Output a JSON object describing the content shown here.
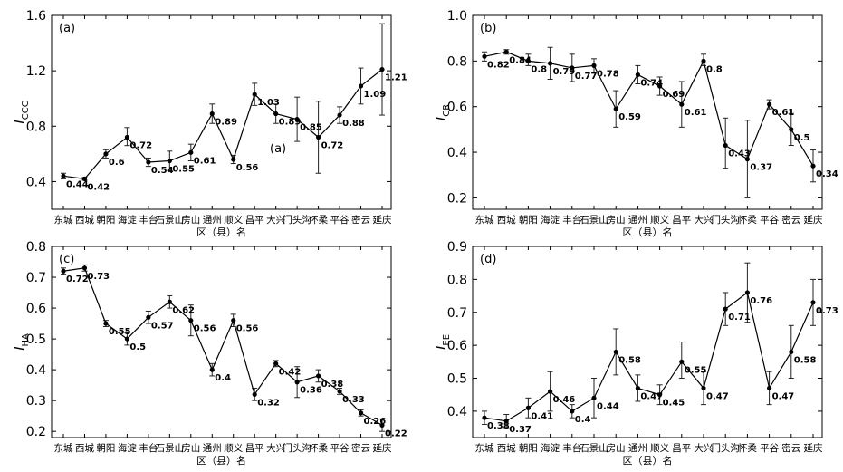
{
  "chart_data": [
    {
      "type": "line",
      "panel_label": "(a)",
      "annotation": "(a)",
      "ylabel": "I",
      "ylabel_sub": "CCC",
      "xlabel": "区（县）名",
      "ylim": [
        0.2,
        1.6
      ],
      "yticks": [
        "0.4",
        "0.8",
        "1.2",
        "1.6"
      ],
      "yticks_values": [
        0.4,
        0.8,
        1.2,
        1.6
      ],
      "grid": false,
      "categories": [
        "东城",
        "西城",
        "朝阳",
        "海淀",
        "丰台",
        "石景山",
        "房山",
        "通州",
        "顺义",
        "昌平",
        "大兴",
        "门头沟",
        "怀柔",
        "平谷",
        "密云",
        "延庆"
      ],
      "x_tick_labels": [
        "东城",
        "西城",
        "朝阳",
        "海淀",
        "丰台",
        "石景山",
        "房山",
        "通州",
        "顺义",
        "昌平",
        "大兴",
        "门头沟",
        "怀柔",
        "平谷",
        "密云",
        "延庆"
      ],
      "values": [
        0.44,
        0.42,
        0.6,
        0.72,
        0.54,
        0.55,
        0.61,
        0.89,
        0.56,
        1.03,
        0.89,
        0.85,
        0.72,
        0.88,
        1.09,
        1.21
      ],
      "value_labels": [
        "0.44",
        "0.42",
        "0.6",
        "0.72",
        "0.54",
        "0.55",
        "0.61",
        "0.89",
        "0.56",
        "1.03",
        "0.89",
        "0.85",
        "0.72",
        "0.88",
        "1.09",
        "1.21"
      ],
      "err_low": [
        0.42,
        0.41,
        0.57,
        0.66,
        0.51,
        0.48,
        0.55,
        0.82,
        0.53,
        0.95,
        0.82,
        0.69,
        0.46,
        0.82,
        0.96,
        0.88
      ],
      "err_high": [
        0.46,
        0.43,
        0.63,
        0.79,
        0.57,
        0.62,
        0.67,
        0.96,
        0.59,
        1.11,
        0.96,
        1.01,
        0.98,
        0.94,
        1.22,
        1.54
      ]
    },
    {
      "type": "line",
      "panel_label": "(b)",
      "ylabel": "I",
      "ylabel_sub": "CR",
      "xlabel": "区（县）名",
      "ylim": [
        0.15,
        1.0
      ],
      "yticks": [
        "0.2",
        "0.4",
        "0.6",
        "0.8",
        "1.0"
      ],
      "yticks_values": [
        0.2,
        0.4,
        0.6,
        0.8,
        1.0
      ],
      "grid": false,
      "categories": [
        "东城",
        "西城",
        "朝阳",
        "海淀",
        "丰台",
        "石景山",
        "房山",
        "通州",
        "顺义",
        "昌平",
        "大兴",
        "门头沟",
        "怀柔",
        "平谷",
        "密云",
        "延庆"
      ],
      "x_tick_labels": [
        "东城",
        "西城",
        "朝阳",
        "海淀",
        "丰台",
        "石景山",
        "房山",
        "通州",
        "顺义",
        "昌平",
        "大兴",
        "门头沟",
        "怀柔",
        "平谷",
        "密云",
        "延庆"
      ],
      "values": [
        0.82,
        0.84,
        0.8,
        0.79,
        0.77,
        0.78,
        0.59,
        0.74,
        0.69,
        0.61,
        0.8,
        0.43,
        0.37,
        0.61,
        0.5,
        0.34
      ],
      "value_labels": [
        "0.82",
        "0.84",
        "0.8",
        "0.79",
        "0.77",
        "0.78",
        "0.59",
        "0.74",
        "0.69",
        "0.61",
        "0.8",
        "0.43",
        "0.37",
        "0.61",
        "0.5",
        "0.34"
      ],
      "err_low": [
        0.8,
        0.83,
        0.78,
        0.72,
        0.71,
        0.75,
        0.51,
        0.7,
        0.65,
        0.51,
        0.78,
        0.33,
        0.2,
        0.59,
        0.43,
        0.27
      ],
      "err_high": [
        0.84,
        0.85,
        0.83,
        0.86,
        0.83,
        0.81,
        0.67,
        0.78,
        0.73,
        0.71,
        0.83,
        0.55,
        0.54,
        0.63,
        0.57,
        0.41
      ]
    },
    {
      "type": "line",
      "panel_label": "(c)",
      "ylabel": "I",
      "ylabel_sub": "HA",
      "xlabel": "区（县）名",
      "ylim": [
        0.18,
        0.8
      ],
      "yticks": [
        "0.2",
        "0.3",
        "0.4",
        "0.5",
        "0.6",
        "0.7",
        "0.8"
      ],
      "yticks_values": [
        0.2,
        0.3,
        0.4,
        0.5,
        0.6,
        0.7,
        0.8
      ],
      "grid": false,
      "categories": [
        "东城",
        "西城",
        "朝阳",
        "海淀",
        "丰台",
        "石景山",
        "房山",
        "通州",
        "顺义",
        "昌平",
        "大兴",
        "门头沟",
        "怀柔",
        "平谷",
        "密云",
        "延庆"
      ],
      "x_tick_labels": [
        "东城",
        "西城",
        "朝阳",
        "海淀",
        "丰台",
        "石景山",
        "房山",
        "通州",
        "顺义",
        "昌平",
        "大兴",
        "门头沟",
        "怀柔",
        "平谷",
        "密云",
        "延庆"
      ],
      "values": [
        0.72,
        0.73,
        0.55,
        0.5,
        0.57,
        0.62,
        0.56,
        0.4,
        0.56,
        0.32,
        0.42,
        0.36,
        0.38,
        0.33,
        0.26,
        0.22
      ],
      "value_labels": [
        "0.72",
        "0.73",
        "0.55",
        "0.5",
        "0.57",
        "0.62",
        "0.56",
        "0.4",
        "0.56",
        "0.32",
        "0.42",
        "0.36",
        "0.38",
        "0.33",
        "0.26",
        "0.22"
      ],
      "err_low": [
        0.71,
        0.72,
        0.54,
        0.48,
        0.55,
        0.6,
        0.51,
        0.38,
        0.54,
        0.3,
        0.41,
        0.31,
        0.36,
        0.32,
        0.25,
        0.2
      ],
      "err_high": [
        0.73,
        0.74,
        0.56,
        0.52,
        0.59,
        0.64,
        0.61,
        0.42,
        0.58,
        0.34,
        0.43,
        0.41,
        0.4,
        0.34,
        0.27,
        0.24
      ]
    },
    {
      "type": "line",
      "panel_label": "(d)",
      "ylabel": "I",
      "ylabel_sub": "EE",
      "xlabel": "区（县）名",
      "ylim": [
        0.32,
        0.9
      ],
      "yticks": [
        "0.4",
        "0.5",
        "0.6",
        "0.7",
        "0.8",
        "0.9"
      ],
      "yticks_values": [
        0.4,
        0.5,
        0.6,
        0.7,
        0.8,
        0.9
      ],
      "grid": false,
      "categories": [
        "东城",
        "西城",
        "朝阳",
        "海淀",
        "丰台",
        "石景山",
        "房山",
        "通州",
        "顺义",
        "昌平",
        "大兴",
        "门头沟",
        "怀柔",
        "平谷",
        "密云",
        "延庆"
      ],
      "x_tick_labels": [
        "东城",
        "西城",
        "朝阳",
        "海淀",
        "丰台",
        "石景山",
        "房山",
        "通州",
        "顺义",
        "昌平",
        "大兴",
        "门头沟",
        "怀柔",
        "平谷",
        "密云",
        "延庆"
      ],
      "values": [
        0.38,
        0.37,
        0.41,
        0.46,
        0.4,
        0.44,
        0.58,
        0.47,
        0.45,
        0.55,
        0.47,
        0.71,
        0.76,
        0.47,
        0.58,
        0.73
      ],
      "value_labels": [
        "0.38",
        "0.37",
        "0.41",
        "0.46",
        "0.4",
        "0.44",
        "0.58",
        "0.47",
        "0.45",
        "0.55",
        "0.47",
        "0.71",
        "0.76",
        "0.47",
        "0.58",
        "0.73"
      ],
      "err_low": [
        0.36,
        0.35,
        0.38,
        0.4,
        0.38,
        0.38,
        0.51,
        0.43,
        0.42,
        0.5,
        0.42,
        0.66,
        0.67,
        0.42,
        0.5,
        0.66
      ],
      "err_high": [
        0.4,
        0.39,
        0.44,
        0.52,
        0.42,
        0.5,
        0.65,
        0.51,
        0.48,
        0.61,
        0.52,
        0.76,
        0.85,
        0.52,
        0.66,
        0.8
      ]
    }
  ]
}
